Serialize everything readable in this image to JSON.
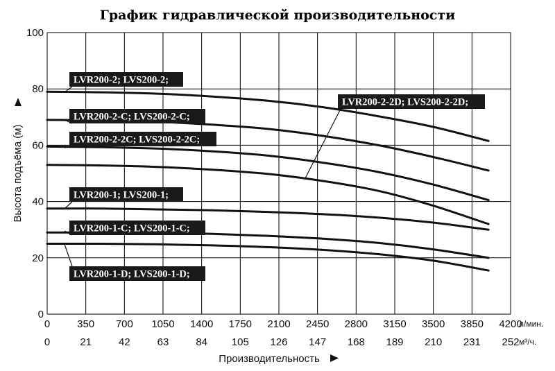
{
  "chart_data": {
    "type": "line",
    "title": "График гидравлической производительности",
    "xlabel": "Производительность",
    "ylabel": "Высота подъёма (м)",
    "xlim": [
      0,
      4200
    ],
    "ylim": [
      0,
      100
    ],
    "grid": true,
    "x_ticks": [
      0,
      350,
      700,
      1050,
      1400,
      1750,
      2100,
      2450,
      2800,
      3150,
      3500,
      3850,
      4200
    ],
    "x_unit": "л/мин.",
    "x2_ticks": [
      0,
      21,
      42,
      63,
      84,
      105,
      126,
      147,
      168,
      189,
      210,
      231,
      252
    ],
    "x2_unit": "м³/ч.",
    "y_ticks": [
      0,
      20,
      40,
      60,
      80,
      100
    ],
    "series": [
      {
        "name": "LVR200-2; LVS200-2;",
        "x": [
          0,
          500,
          1000,
          1500,
          2000,
          2500,
          3000,
          3500,
          4000
        ],
        "values": [
          79,
          78.8,
          78.3,
          77.3,
          75.8,
          73.5,
          70.3,
          66.5,
          61.5
        ]
      },
      {
        "name": "LVR200-2-C; LVS200-2-C;",
        "x": [
          0,
          500,
          1000,
          1500,
          2000,
          2500,
          3000,
          3500,
          4000
        ],
        "values": [
          69,
          68.8,
          68.3,
          67.3,
          65.8,
          63.3,
          60,
          55.8,
          51
        ]
      },
      {
        "name": "LVR200-2-2C; LVS200-2-2C;",
        "x": [
          0,
          500,
          1000,
          1500,
          2000,
          2500,
          3000,
          3500,
          4000
        ],
        "values": [
          59.5,
          59.3,
          58.8,
          57.8,
          56.3,
          53.8,
          50.5,
          46,
          40.5
        ]
      },
      {
        "name": "LVR200-2-2D; LVS200-2-2D;",
        "x": [
          0,
          500,
          1000,
          1500,
          2000,
          2500,
          3000,
          3500,
          4000
        ],
        "values": [
          53,
          52.8,
          52.3,
          51.3,
          49.8,
          47.3,
          43.8,
          38.5,
          32
        ]
      },
      {
        "name": "LVR200-1; LVS200-1;",
        "x": [
          0,
          500,
          1000,
          1500,
          2000,
          2500,
          3000,
          3500,
          4000
        ],
        "values": [
          37.5,
          37.5,
          37.2,
          36.9,
          36.3,
          35.5,
          34.3,
          32.5,
          30
        ]
      },
      {
        "name": "LVR200-1-C; LVS200-1-C;",
        "x": [
          0,
          500,
          1000,
          1500,
          2000,
          2500,
          3000,
          3500,
          4000
        ],
        "values": [
          29,
          29,
          28.8,
          28.5,
          27.8,
          26.8,
          25.3,
          23,
          20
        ]
      },
      {
        "name": "LVR200-1-D; LVS200-1-D;",
        "x": [
          0,
          500,
          1000,
          1500,
          2000,
          2500,
          3000,
          3500,
          4000
        ],
        "values": [
          25,
          25,
          24.8,
          24.4,
          23.8,
          22.8,
          21.3,
          19,
          15.5
        ]
      }
    ]
  }
}
